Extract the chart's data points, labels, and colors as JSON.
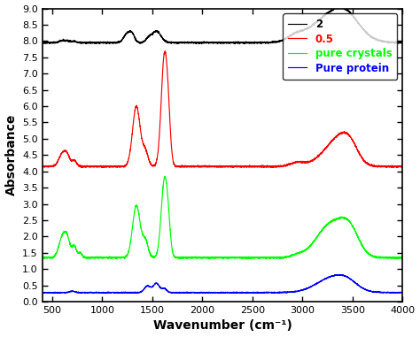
{
  "xlabel": "Wavenumber (cm⁻¹)",
  "ylabel": "Absorbance",
  "xlim": [
    400,
    4000
  ],
  "ylim": [
    0.0,
    9.0
  ],
  "yticks": [
    0.0,
    0.5,
    1.0,
    1.5,
    2.0,
    2.5,
    3.0,
    3.5,
    4.0,
    4.5,
    5.0,
    5.5,
    6.0,
    6.5,
    7.0,
    7.5,
    8.0,
    8.5,
    9.0
  ],
  "xticks": [
    500,
    1000,
    1500,
    2000,
    2500,
    3000,
    3500,
    4000
  ],
  "legend": [
    {
      "label": "2",
      "color": "black"
    },
    {
      "label": "0.5",
      "color": "red"
    },
    {
      "label": "pure crystals",
      "color": "lime"
    },
    {
      "label": "Pure protein",
      "color": "blue"
    }
  ],
  "background_color": "white",
  "plot_bg_color": "white",
  "tick_color": "black",
  "label_color": "black",
  "spine_color": "black",
  "black_baseline": 7.95,
  "red_baseline": 4.15,
  "green_baseline": 1.35,
  "blue_baseline": 0.28
}
